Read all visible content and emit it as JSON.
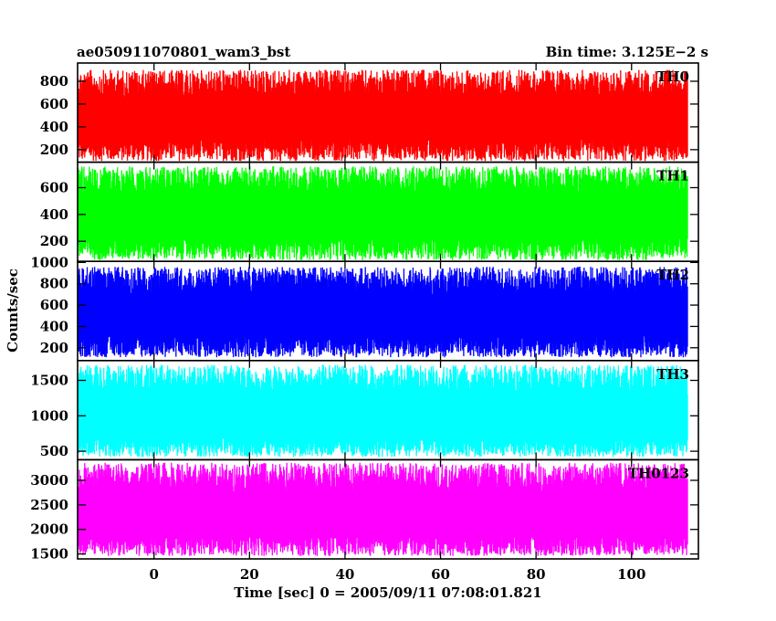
{
  "chart_data": {
    "type": "line",
    "title_left": "ae050911070801_wam3_bst",
    "title_right": "Bin time: 3.125E−2 s",
    "xlabel": "Time [sec] 0 = 2005/09/11 07:08:01.821",
    "ylabel": "Counts/sec",
    "xlim": [
      -16,
      114
    ],
    "xticks": [
      0,
      20,
      40,
      60,
      80,
      100
    ],
    "data_x_range": [
      -15.9,
      111.7
    ],
    "panels": [
      {
        "name": "TH0",
        "color": "#ff0000",
        "ylim": [
          90,
          960
        ],
        "yticks": [
          200,
          400,
          600,
          800
        ],
        "level_low": 100,
        "level_high": 900,
        "mean": 450
      },
      {
        "name": "TH1",
        "color": "#00ff00",
        "ylim": [
          50,
          790
        ],
        "yticks": [
          200,
          400,
          600
        ],
        "level_low": 60,
        "level_high": 760,
        "mean": 370
      },
      {
        "name": "TH2",
        "color": "#0000ff",
        "ylim": [
          80,
          1010
        ],
        "yticks": [
          200,
          400,
          600,
          800,
          1000
        ],
        "level_low": 110,
        "level_high": 960,
        "mean": 480
      },
      {
        "name": "TH3",
        "color": "#00ffff",
        "ylim": [
          380,
          1780
        ],
        "yticks": [
          500,
          1000,
          1500
        ],
        "level_low": 420,
        "level_high": 1720,
        "mean": 950
      },
      {
        "name": "TH0123",
        "color": "#ff00ff",
        "ylim": [
          1400,
          3420
        ],
        "yticks": [
          1500,
          2000,
          2500,
          3000
        ],
        "level_low": 1460,
        "level_high": 3360,
        "mean": 2250
      }
    ]
  }
}
